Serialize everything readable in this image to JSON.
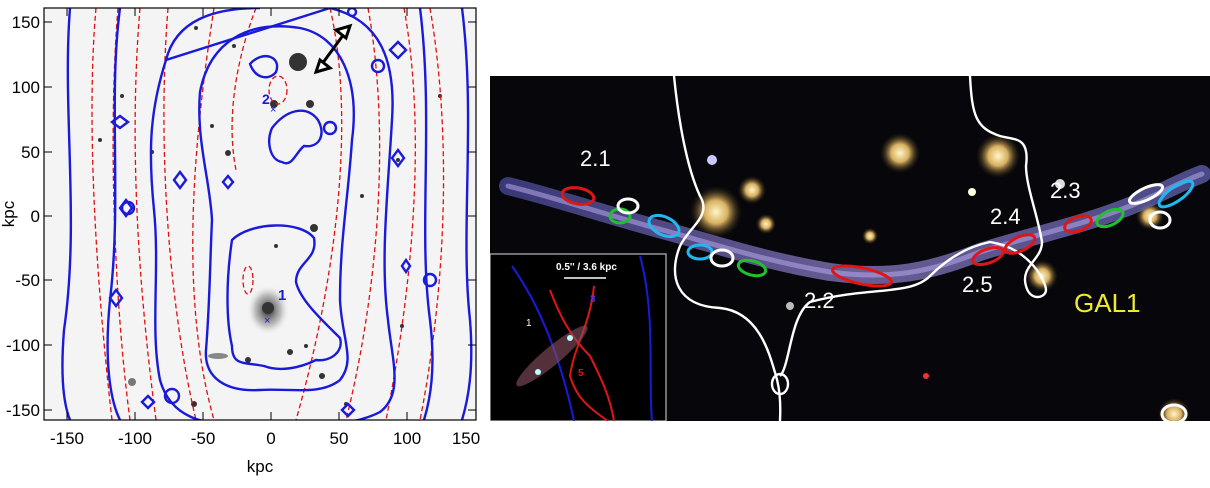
{
  "left_panel": {
    "xlabel": "kpc",
    "ylabel": "kpc",
    "x_ticks": [
      "-150",
      "-100",
      "-50",
      "0",
      "50",
      "100",
      "150"
    ],
    "y_ticks": [
      "150",
      "100",
      "50",
      "0",
      "-50",
      "-100",
      "-150"
    ],
    "image_labels": {
      "image1": "1",
      "image2": "2"
    },
    "colors": {
      "mass_contours": "#1a1adb",
      "critical_lines": "#e01010",
      "arrow": "#000000"
    }
  },
  "right_panel": {
    "labels": {
      "img_2_1": "2.1",
      "img_2_2": "2.2",
      "img_2_3": "2.3",
      "img_2_4": "2.4",
      "img_2_5": "2.5",
      "gal1": "GAL1"
    },
    "inset": {
      "scale_label": "0.5'' / 3.6 kpc",
      "label_1": "1",
      "label_3": "3",
      "label_5": "5"
    },
    "colors": {
      "critical_curve": "#ffffff",
      "gal1_label": "#f2e830",
      "red_ellipses": "#e01515",
      "green_ellipses": "#20c030",
      "cyan_ellipses": "#20b8f0",
      "white_ellipses": "#ffffff"
    }
  }
}
